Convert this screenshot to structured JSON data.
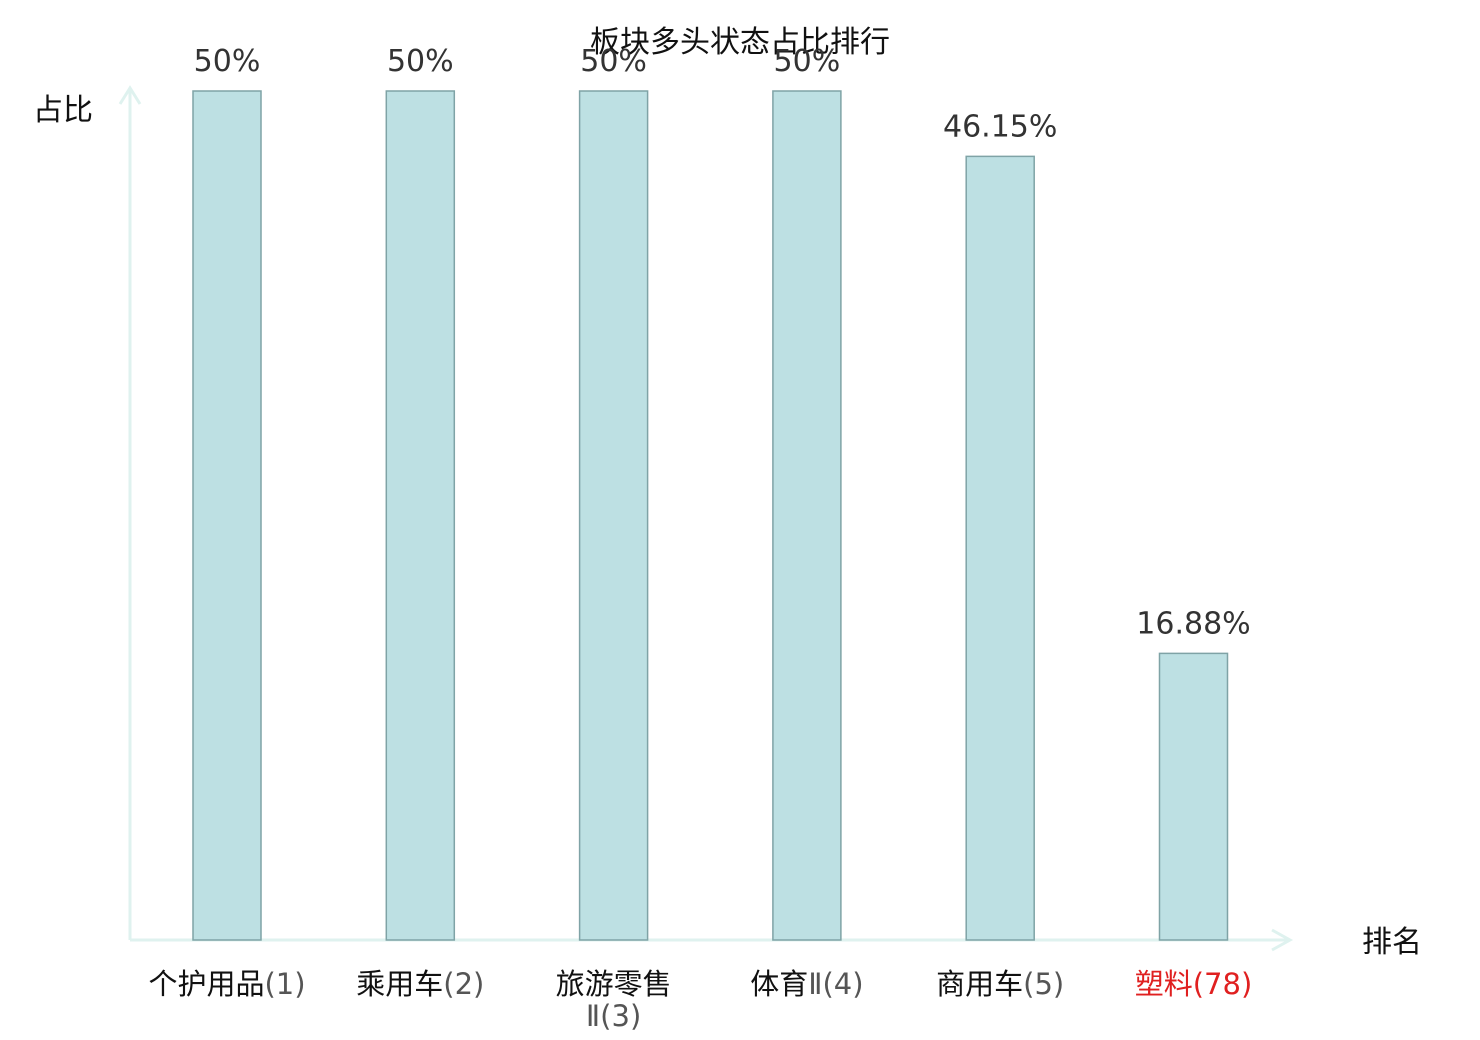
{
  "chart_data": {
    "type": "bar",
    "title": "板块多头状态占比排行",
    "ylabel": "占比",
    "xlabel": "排名",
    "ylim": [
      0,
      50
    ],
    "categories": [
      "个护用品(1)",
      "乘用车(2)",
      "旅游零售Ⅱ(3)",
      "体育Ⅱ(4)",
      "商用车(5)",
      "塑料(78)"
    ],
    "values": [
      50,
      50,
      50,
      50,
      46.15,
      16.88
    ],
    "value_labels": [
      "50%",
      "50%",
      "50%",
      "50%",
      "46.15%",
      "16.88%"
    ],
    "highlight_index": 5,
    "colors": {
      "bar_fill": "#bde0e3",
      "bar_stroke": "#7fa3a6",
      "axis": "#dff2ef",
      "highlight_label": "#e02020",
      "label": "#111111",
      "value_label": "#333333"
    },
    "grid": false
  }
}
